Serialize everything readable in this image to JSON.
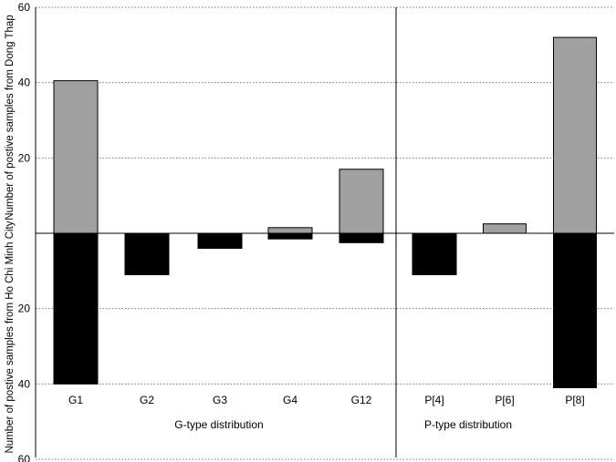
{
  "chart_data": {
    "type": "bar",
    "ylabel_top": "Number of postive samples from Dong Thap",
    "ylabel_bottom": "Number of postive samples from Ho Chi Minh City",
    "ylim": [
      -60,
      60
    ],
    "yticks": [
      {
        "value": 60,
        "label": "60"
      },
      {
        "value": 40,
        "label": "40"
      },
      {
        "value": 20,
        "label": "20"
      },
      {
        "value": -20,
        "label": "20"
      },
      {
        "value": -40,
        "label": "40"
      },
      {
        "value": -60,
        "label": "60"
      }
    ],
    "grid": true,
    "colors": {
      "dong_thap": "#a0a0a0",
      "ho_chi_minh": "#000000"
    },
    "groups": [
      {
        "label": "G-type distribution",
        "categories": [
          "G1",
          "G2",
          "G3",
          "G4",
          "G12"
        ],
        "dong_thap": [
          40.5,
          0,
          0,
          1.5,
          17
        ],
        "ho_chi_minh": [
          40,
          11,
          4,
          1.5,
          2.5
        ]
      },
      {
        "label": "P-type distribution",
        "categories": [
          "P[4]",
          "P[6]",
          "P[8]"
        ],
        "dong_thap": [
          0,
          2.5,
          52
        ],
        "ho_chi_minh": [
          11,
          0,
          41
        ]
      }
    ]
  }
}
